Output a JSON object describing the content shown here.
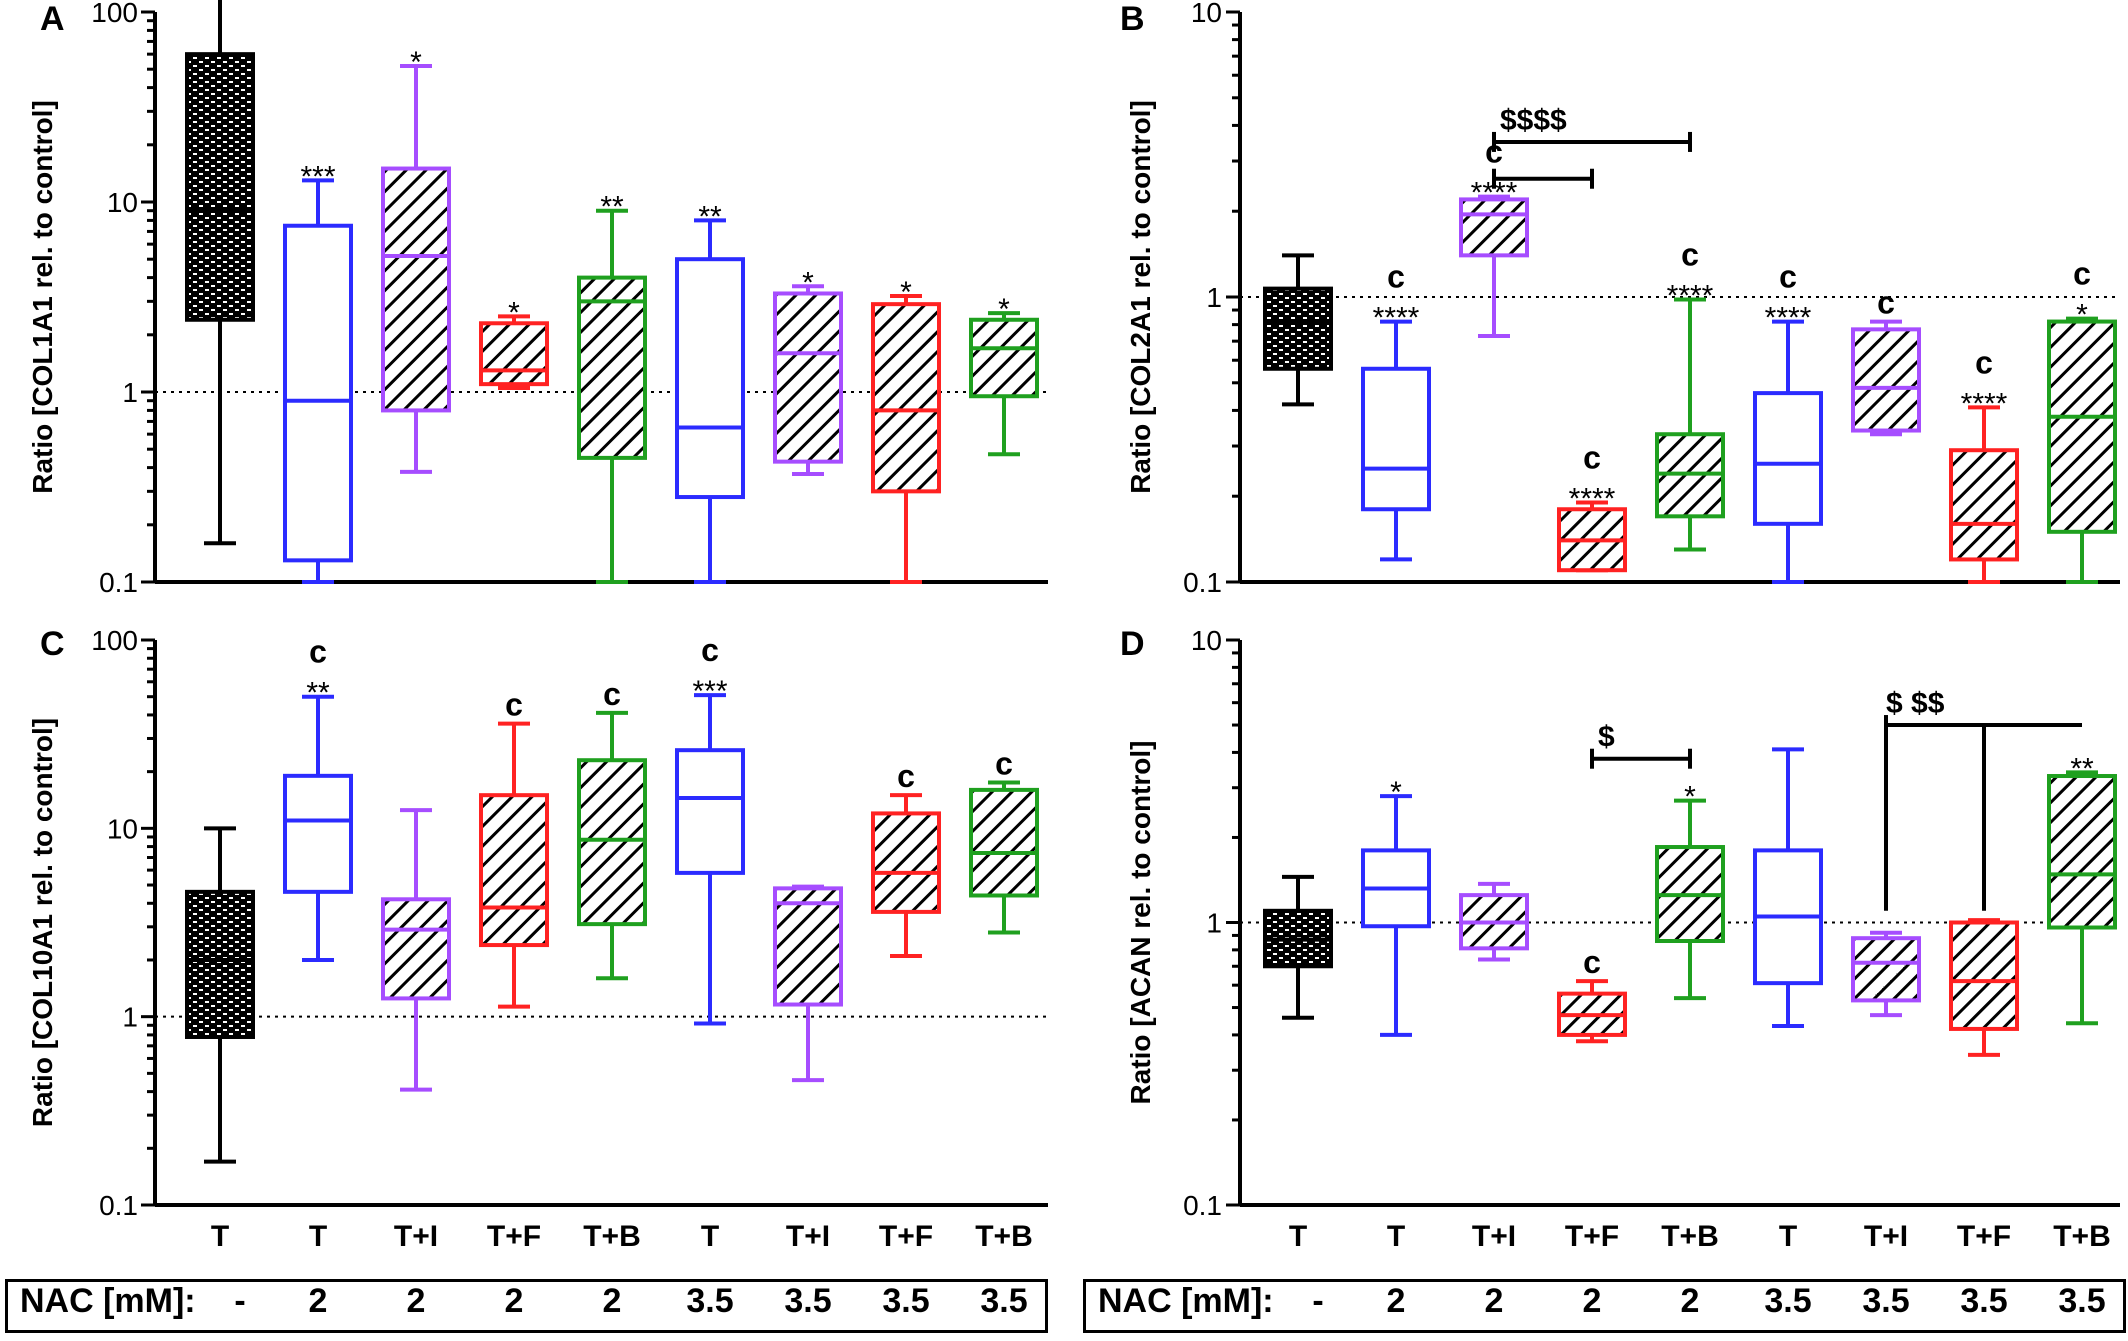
{
  "group_labels": [
    "T",
    "T",
    "T+I",
    "T+F",
    "T+B",
    "T",
    "T+I",
    "T+F",
    "T+B"
  ],
  "nac": {
    "title": "NAC [mM]:",
    "values": [
      "-",
      "2",
      "2",
      "2",
      "2",
      "3.5",
      "3.5",
      "3.5",
      "3.5"
    ]
  },
  "colors": {
    "black": "#000000",
    "blue": "#2b2bff",
    "purple": "#a64dff",
    "red": "#ff2222",
    "green": "#1fa01f"
  },
  "chart_data": [
    {
      "panel": "A",
      "type": "box",
      "ylabel": "Ratio [COL1A1 rel. to control]",
      "yscale": "log",
      "ylim": [
        0.1,
        100
      ],
      "yticks": [
        "0.1",
        "1",
        "10",
        "100"
      ],
      "reference_line": 1,
      "boxes": [
        {
          "group": "T",
          "color": "black",
          "fill": "brick",
          "min": 0.16,
          "q1": 2.4,
          "median": 9.0,
          "q3": 60,
          "max": 120,
          "star": "",
          "letter": ""
        },
        {
          "group": "T",
          "color": "blue",
          "fill": "none",
          "min": 0.1,
          "q1": 0.13,
          "median": 0.9,
          "q3": 7.5,
          "max": 13,
          "star": "***",
          "letter": ""
        },
        {
          "group": "T+I",
          "color": "purple",
          "fill": "hatch",
          "min": 0.38,
          "q1": 0.8,
          "median": 5.2,
          "q3": 15,
          "max": 52,
          "star": "*",
          "letter": ""
        },
        {
          "group": "T+F",
          "color": "red",
          "fill": "hatch",
          "min": 1.05,
          "q1": 1.1,
          "median": 1.3,
          "q3": 2.3,
          "max": 2.5,
          "star": "*",
          "letter": ""
        },
        {
          "group": "T+B",
          "color": "green",
          "fill": "hatch",
          "min": 0.1,
          "q1": 0.45,
          "median": 3.0,
          "q3": 4.0,
          "max": 9.0,
          "star": "**",
          "letter": ""
        },
        {
          "group": "T",
          "color": "blue",
          "fill": "none",
          "min": 0.1,
          "q1": 0.28,
          "median": 0.65,
          "q3": 5.0,
          "max": 8.0,
          "star": "**",
          "letter": ""
        },
        {
          "group": "T+I",
          "color": "purple",
          "fill": "hatch",
          "min": 0.37,
          "q1": 0.43,
          "median": 1.6,
          "q3": 3.3,
          "max": 3.6,
          "star": "*",
          "letter": ""
        },
        {
          "group": "T+F",
          "color": "red",
          "fill": "hatch",
          "min": 0.1,
          "q1": 0.3,
          "median": 0.8,
          "q3": 2.9,
          "max": 3.2,
          "star": "*",
          "letter": ""
        },
        {
          "group": "T+B",
          "color": "green",
          "fill": "hatch",
          "min": 0.47,
          "q1": 0.95,
          "median": 1.7,
          "q3": 2.4,
          "max": 2.6,
          "star": "*",
          "letter": ""
        }
      ],
      "brackets": []
    },
    {
      "panel": "B",
      "type": "box",
      "ylabel": "Ratio [COL2A1 rel. to control]",
      "yscale": "log",
      "ylim": [
        0.1,
        10
      ],
      "yticks": [
        "0.1",
        "1",
        "10"
      ],
      "reference_line": 1,
      "boxes": [
        {
          "group": "T",
          "color": "black",
          "fill": "brick",
          "min": 0.42,
          "q1": 0.56,
          "median": 0.82,
          "q3": 1.07,
          "max": 1.4,
          "star": "",
          "letter": ""
        },
        {
          "group": "T",
          "color": "blue",
          "fill": "none",
          "min": 0.12,
          "q1": 0.18,
          "median": 0.25,
          "q3": 0.56,
          "max": 0.82,
          "star": "****",
          "letter": "c"
        },
        {
          "group": "T+I",
          "color": "purple",
          "fill": "hatch",
          "min": 0.73,
          "q1": 1.4,
          "median": 1.95,
          "q3": 2.2,
          "max": 2.25,
          "star": "****",
          "letter": "c"
        },
        {
          "group": "T+F",
          "color": "red",
          "fill": "hatch",
          "min": 0.11,
          "q1": 0.11,
          "median": 0.14,
          "q3": 0.18,
          "max": 0.19,
          "star": "****",
          "letter": "c"
        },
        {
          "group": "T+B",
          "color": "green",
          "fill": "hatch",
          "min": 0.13,
          "q1": 0.17,
          "median": 0.24,
          "q3": 0.33,
          "max": 0.98,
          "star": "****",
          "letter": "c"
        },
        {
          "group": "T",
          "color": "blue",
          "fill": "none",
          "min": 0.1,
          "q1": 0.16,
          "median": 0.26,
          "q3": 0.46,
          "max": 0.82,
          "star": "****",
          "letter": "c"
        },
        {
          "group": "T+I",
          "color": "purple",
          "fill": "hatch",
          "min": 0.33,
          "q1": 0.34,
          "median": 0.48,
          "q3": 0.77,
          "max": 0.82,
          "star": "",
          "letter": "c"
        },
        {
          "group": "T+F",
          "color": "red",
          "fill": "hatch",
          "min": 0.1,
          "q1": 0.12,
          "median": 0.16,
          "q3": 0.29,
          "max": 0.41,
          "star": "****",
          "letter": "c"
        },
        {
          "group": "T+B",
          "color": "green",
          "fill": "hatch",
          "min": 0.1,
          "q1": 0.15,
          "median": 0.38,
          "q3": 0.82,
          "max": 0.84,
          "star": "*",
          "letter": "c"
        }
      ],
      "brackets": [
        {
          "label": "$$$$",
          "from": 2,
          "to": 4,
          "level": 3.5,
          "tick_from": true,
          "tick_to": true
        },
        {
          "label": "",
          "from": 2,
          "to": 3,
          "level": 2.6,
          "tick_from": true,
          "tick_to": true
        }
      ]
    },
    {
      "panel": "C",
      "type": "box",
      "ylabel": "Ratio [COL10A1 rel. to control]",
      "yscale": "log",
      "ylim": [
        0.1,
        100
      ],
      "yticks": [
        "0.1",
        "1",
        "10",
        "100"
      ],
      "reference_line": 1,
      "boxes": [
        {
          "group": "T",
          "color": "black",
          "fill": "brick",
          "min": 0.17,
          "q1": 0.78,
          "median": 2.0,
          "q3": 4.6,
          "max": 10,
          "star": "",
          "letter": ""
        },
        {
          "group": "T",
          "color": "blue",
          "fill": "none",
          "min": 2.0,
          "q1": 4.6,
          "median": 11,
          "q3": 19,
          "max": 50,
          "star": "**",
          "letter": "c"
        },
        {
          "group": "T+I",
          "color": "purple",
          "fill": "hatch",
          "min": 0.41,
          "q1": 1.25,
          "median": 2.9,
          "q3": 4.2,
          "max": 12.5,
          "star": "",
          "letter": ""
        },
        {
          "group": "T+F",
          "color": "red",
          "fill": "hatch",
          "min": 1.13,
          "q1": 2.4,
          "median": 3.8,
          "q3": 15,
          "max": 36,
          "star": "",
          "letter": "c"
        },
        {
          "group": "T+B",
          "color": "green",
          "fill": "hatch",
          "min": 1.6,
          "q1": 3.1,
          "median": 8.7,
          "q3": 23,
          "max": 41,
          "star": "",
          "letter": "c"
        },
        {
          "group": "T",
          "color": "blue",
          "fill": "none",
          "min": 0.92,
          "q1": 5.8,
          "median": 14.5,
          "q3": 26,
          "max": 51,
          "star": "***",
          "letter": "c"
        },
        {
          "group": "T+I",
          "color": "purple",
          "fill": "hatch",
          "min": 0.46,
          "q1": 1.16,
          "median": 4.0,
          "q3": 4.8,
          "max": 4.9,
          "star": "",
          "letter": ""
        },
        {
          "group": "T+F",
          "color": "red",
          "fill": "hatch",
          "min": 2.1,
          "q1": 3.6,
          "median": 5.8,
          "q3": 12,
          "max": 15,
          "star": "",
          "letter": "c"
        },
        {
          "group": "T+B",
          "color": "green",
          "fill": "hatch",
          "min": 2.8,
          "q1": 4.4,
          "median": 7.4,
          "q3": 16,
          "max": 17.5,
          "star": "",
          "letter": "c"
        }
      ],
      "brackets": []
    },
    {
      "panel": "D",
      "type": "box",
      "ylabel": "Ratio [ACAN rel. to control]",
      "yscale": "log",
      "ylim": [
        0.1,
        10
      ],
      "yticks": [
        "0.1",
        "1",
        "10"
      ],
      "reference_line": 1,
      "boxes": [
        {
          "group": "T",
          "color": "black",
          "fill": "brick",
          "min": 0.46,
          "q1": 0.7,
          "median": 0.87,
          "q3": 1.1,
          "max": 1.45,
          "star": "",
          "letter": ""
        },
        {
          "group": "T",
          "color": "blue",
          "fill": "none",
          "min": 0.4,
          "q1": 0.97,
          "median": 1.32,
          "q3": 1.8,
          "max": 2.8,
          "star": "*",
          "letter": ""
        },
        {
          "group": "T+I",
          "color": "purple",
          "fill": "hatch",
          "min": 0.74,
          "q1": 0.81,
          "median": 1.0,
          "q3": 1.25,
          "max": 1.37,
          "star": "",
          "letter": ""
        },
        {
          "group": "T+F",
          "color": "red",
          "fill": "hatch",
          "min": 0.38,
          "q1": 0.4,
          "median": 0.47,
          "q3": 0.56,
          "max": 0.62,
          "star": "",
          "letter": "c"
        },
        {
          "group": "T+B",
          "color": "green",
          "fill": "hatch",
          "min": 0.54,
          "q1": 0.86,
          "median": 1.25,
          "q3": 1.85,
          "max": 2.7,
          "star": "*",
          "letter": ""
        },
        {
          "group": "T",
          "color": "blue",
          "fill": "none",
          "min": 0.43,
          "q1": 0.61,
          "median": 1.05,
          "q3": 1.8,
          "max": 4.1,
          "star": "",
          "letter": ""
        },
        {
          "group": "T+I",
          "color": "purple",
          "fill": "hatch",
          "min": 0.47,
          "q1": 0.53,
          "median": 0.72,
          "q3": 0.88,
          "max": 0.92,
          "star": "",
          "letter": ""
        },
        {
          "group": "T+F",
          "color": "red",
          "fill": "hatch",
          "min": 0.34,
          "q1": 0.42,
          "median": 0.62,
          "q3": 1.0,
          "max": 1.02,
          "star": "",
          "letter": ""
        },
        {
          "group": "T+B",
          "color": "green",
          "fill": "hatch",
          "min": 0.44,
          "q1": 0.96,
          "median": 1.48,
          "q3": 3.3,
          "max": 3.4,
          "star": "**",
          "letter": ""
        }
      ],
      "brackets": [
        {
          "label": "$",
          "from": 3,
          "to": 4,
          "level": 3.8,
          "tick_from": true,
          "tick_to": true
        },
        {
          "label": "$     $$",
          "from": 6,
          "to": 8,
          "level": 5.0,
          "tick_from": true,
          "tick_to": false,
          "mid_tick": 7
        }
      ]
    }
  ]
}
